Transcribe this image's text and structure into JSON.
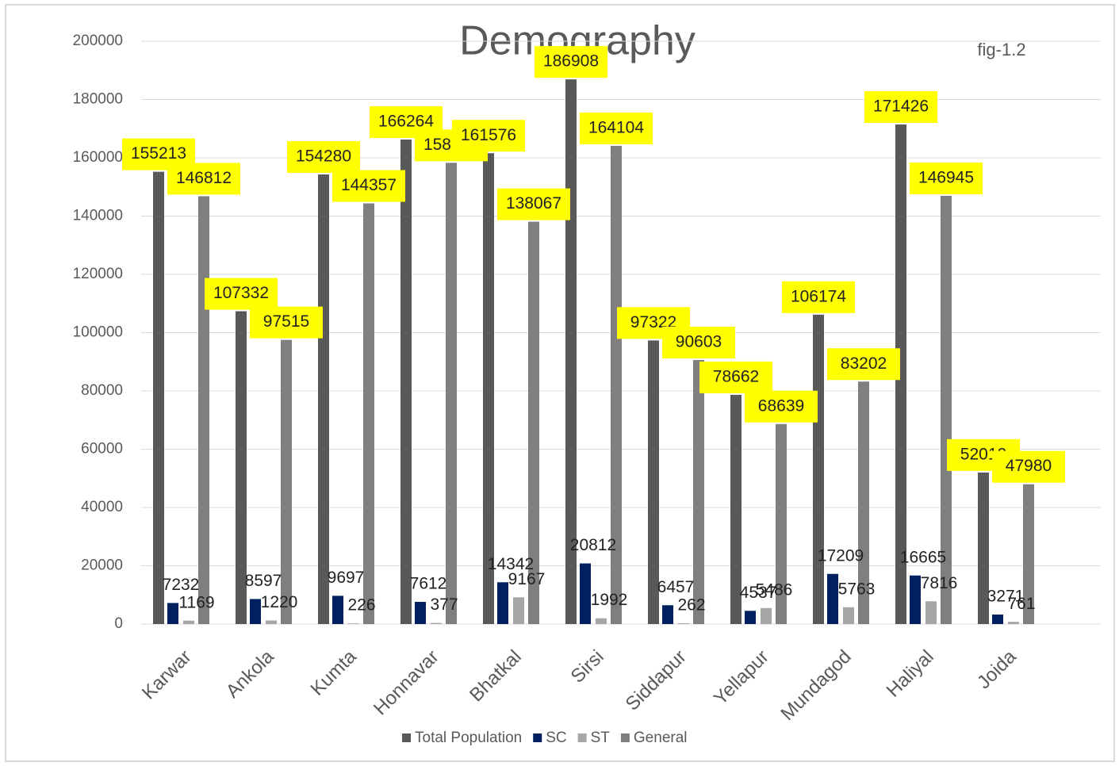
{
  "chart_data": {
    "type": "bar",
    "title": "Demography",
    "annotation": "fig-1.2",
    "categories": [
      "Karwar",
      "Ankola",
      "Kumta",
      "Honnavar",
      "Bhatkal",
      "Sirsi",
      "Siddapur",
      "Yellapur",
      "Mundagod",
      "Haliyal",
      "Joida"
    ],
    "series": [
      {
        "name": "Total Population",
        "color": "#595959",
        "values": [
          155213,
          107332,
          154280,
          166264,
          161576,
          186908,
          97322,
          78662,
          106174,
          171426,
          52012
        ]
      },
      {
        "name": "SC",
        "color": "#002060",
        "values": [
          7232,
          8597,
          9697,
          7612,
          14342,
          20812,
          6457,
          4537,
          17209,
          16665,
          3271
        ]
      },
      {
        "name": "ST",
        "color": "#a6a6a6",
        "values": [
          1169,
          1220,
          226,
          377,
          9167,
          1992,
          262,
          5486,
          5763,
          7816,
          761
        ]
      },
      {
        "name": "General",
        "color": "#7f7f7f",
        "values": [
          146812,
          97515,
          144357,
          158275,
          138067,
          164104,
          90603,
          68639,
          83202,
          146945,
          47980
        ]
      }
    ],
    "ylim": [
      0,
      200000
    ],
    "yticks": [
      0,
      20000,
      40000,
      60000,
      80000,
      100000,
      120000,
      140000,
      160000,
      180000,
      200000
    ],
    "grid": true,
    "legend": "bottom"
  }
}
